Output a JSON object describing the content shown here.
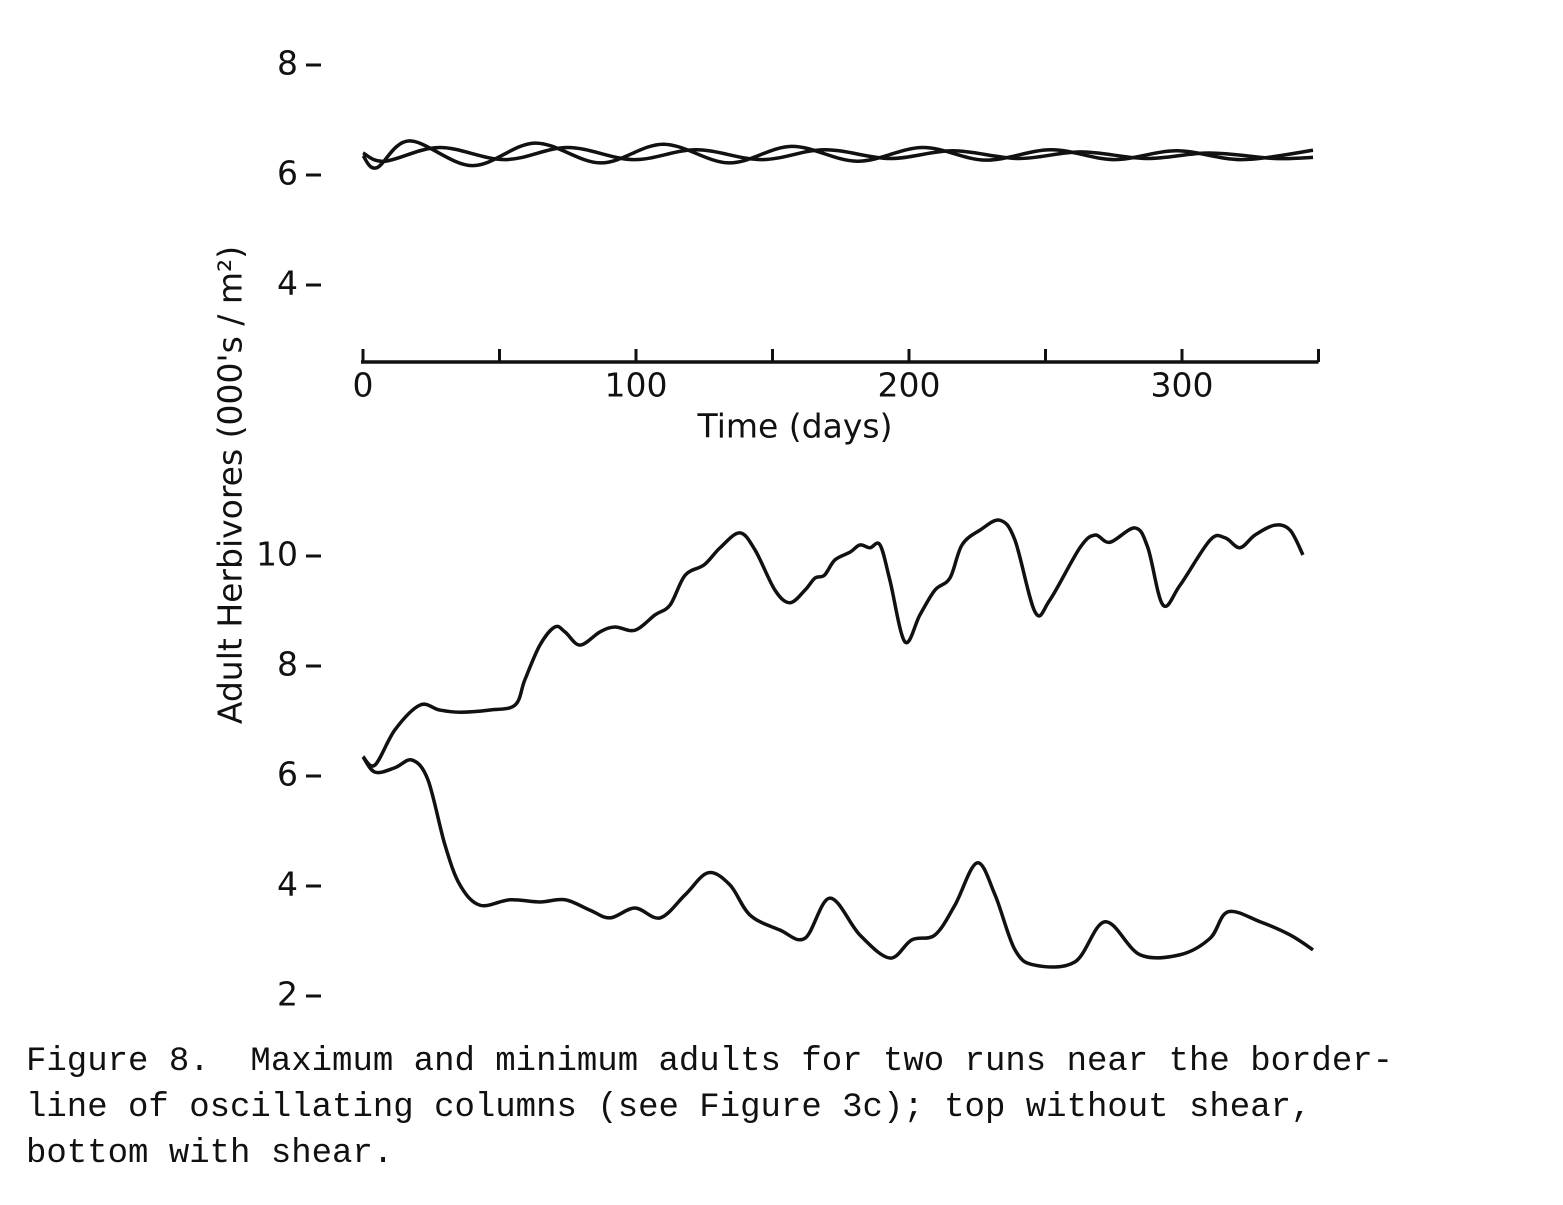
{
  "chart_data": [
    {
      "type": "line",
      "ylabel": "Adult Herbivores (000's / m²)",
      "xlabel": "Time (days)",
      "xlim": [
        0,
        350
      ],
      "ylim": [
        2.6,
        8.2
      ],
      "xticks": [
        0,
        100,
        200,
        300
      ],
      "xminor_ticks": [
        50,
        150,
        250,
        350
      ],
      "yticks": [
        8,
        6,
        4
      ],
      "series": [
        {
          "color": "#111",
          "x": [
            0,
            5,
            17,
            40,
            63,
            87,
            110,
            134,
            157,
            181,
            205,
            228,
            252,
            275,
            298,
            322,
            348
          ],
          "values": [
            6.35,
            6.13,
            6.62,
            6.17,
            6.58,
            6.22,
            6.56,
            6.22,
            6.52,
            6.25,
            6.5,
            6.27,
            6.46,
            6.28,
            6.44,
            6.28,
            6.45
          ]
        },
        {
          "color": "#111",
          "x": [
            0,
            8,
            28,
            52,
            75,
            99,
            122,
            146,
            169,
            193,
            216,
            240,
            263,
            287,
            310,
            334,
            348
          ],
          "values": [
            6.4,
            6.25,
            6.5,
            6.28,
            6.5,
            6.28,
            6.46,
            6.28,
            6.46,
            6.3,
            6.44,
            6.3,
            6.42,
            6.3,
            6.4,
            6.3,
            6.32
          ]
        }
      ]
    },
    {
      "type": "line",
      "xlim": [
        0,
        350
      ],
      "ylim": [
        2,
        11
      ],
      "yticks": [
        10,
        8,
        6,
        4,
        2
      ],
      "series": [
        {
          "color": "#111",
          "x": [
            0,
            4.4,
            11.7,
            20.9,
            28,
            35.5,
            46.5,
            55.7,
            59.3,
            64.8,
            70.3,
            74,
            79.5,
            86.8,
            92.3,
            99.6,
            107,
            112.5,
            118,
            125,
            130.8,
            138,
            143.6,
            150.9,
            156.4,
            161.9,
            165.6,
            169,
            172.9,
            178.4,
            182,
            185.7,
            189.4,
            193,
            198.5,
            204,
            209.5,
            215,
            219.4,
            226,
            233.3,
            238.8,
            246.2,
            251.6,
            262.6,
            268.1,
            273.6,
            282.8,
            287.5,
            293,
            299.3,
            310.3,
            315.8,
            321.2,
            326.7,
            334,
            339.6,
            344.3
          ],
          "values": [
            6.35,
            6.2,
            6.84,
            7.29,
            7.2,
            7.16,
            7.2,
            7.29,
            7.75,
            8.38,
            8.71,
            8.62,
            8.38,
            8.62,
            8.71,
            8.65,
            8.93,
            9.11,
            9.65,
            9.84,
            10.15,
            10.42,
            10.11,
            9.38,
            9.15,
            9.38,
            9.6,
            9.65,
            9.93,
            10.07,
            10.2,
            10.15,
            10.2,
            9.56,
            8.44,
            8.93,
            9.38,
            9.6,
            10.2,
            10.47,
            10.65,
            10.29,
            8.98,
            9.2,
            10.15,
            10.38,
            10.25,
            10.51,
            10.15,
            9.11,
            9.47,
            10.29,
            10.33,
            10.15,
            10.38,
            10.56,
            10.47,
            10.02
          ]
        },
        {
          "color": "#111",
          "x": [
            0,
            4.4,
            11.7,
            18,
            23.8,
            30,
            35.5,
            42.9,
            53.8,
            64.8,
            74,
            83.2,
            90.5,
            99.6,
            108.8,
            118,
            126.4,
            134.4,
            141.8,
            152.7,
            161.9,
            171,
            182,
            193,
            201,
            209.5,
            216.8,
            224.9,
            231.5,
            238.8,
            246.2,
            260.8,
            271.8,
            284.6,
            299.3,
            310.3,
            316.8,
            328.6,
            339.6,
            348
          ],
          "values": [
            6.35,
            6.07,
            6.15,
            6.29,
            5.93,
            4.75,
            4.02,
            3.65,
            3.75,
            3.71,
            3.75,
            3.56,
            3.42,
            3.6,
            3.42,
            3.84,
            4.24,
            4.02,
            3.47,
            3.2,
            3.05,
            3.78,
            3.11,
            2.69,
            3.02,
            3.11,
            3.65,
            4.42,
            3.84,
            2.84,
            2.56,
            2.62,
            3.35,
            2.75,
            2.75,
            3.05,
            3.53,
            3.35,
            3.11,
            2.84
          ]
        }
      ]
    }
  ],
  "caption": [
    "Figure 8.  Maximum and minimum adults for two runs near the border-",
    "line of oscillating columns (see Figure 3c); top without shear,",
    "bottom with shear."
  ]
}
